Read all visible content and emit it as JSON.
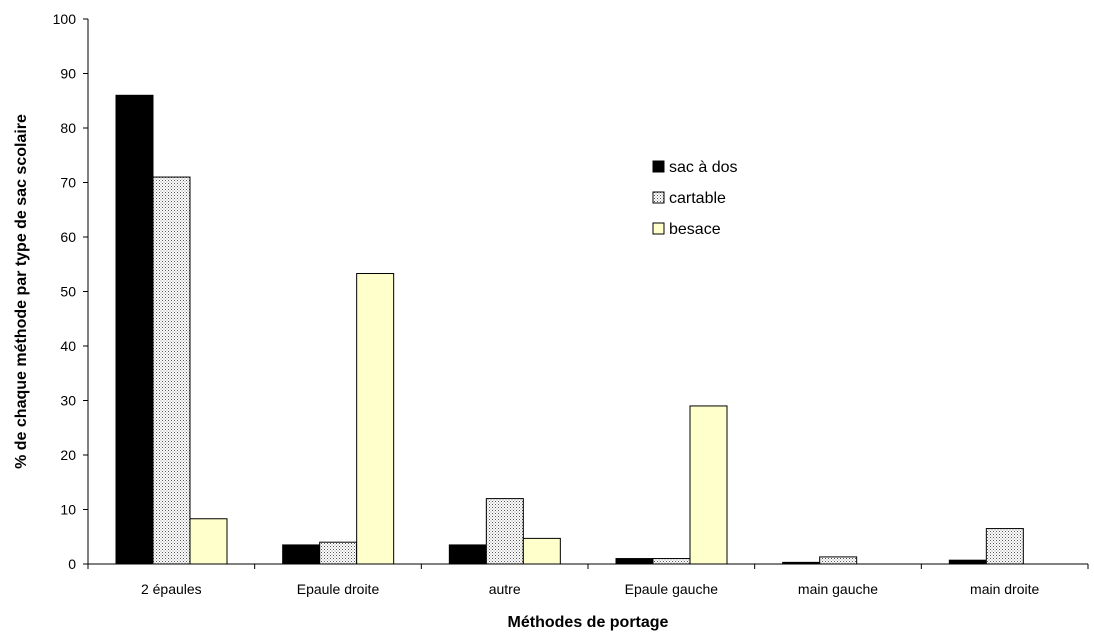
{
  "chart_data": {
    "type": "bar",
    "xlabel": "Méthodes de portage",
    "ylabel": "% de chaque méthode par type de sac scolaire",
    "ylim": [
      0,
      100
    ],
    "yticks": [
      0,
      10,
      20,
      30,
      40,
      50,
      60,
      70,
      80,
      90,
      100
    ],
    "categories": [
      "2 épaules",
      "Epaule droite",
      "autre",
      "Epaule gauche",
      "main gauche",
      "main droite"
    ],
    "series": [
      {
        "name": "sac à dos",
        "values": [
          86,
          3.5,
          3.5,
          1,
          0.3,
          0.7
        ],
        "color": "#000000",
        "pattern": "solid"
      },
      {
        "name": "cartable",
        "values": [
          71,
          4,
          12,
          1,
          1.3,
          6.5
        ],
        "color": "#d9d9d9",
        "pattern": "dots"
      },
      {
        "name": "besace",
        "values": [
          8.3,
          53.3,
          4.7,
          29,
          0,
          0
        ],
        "color": "#ffffcc",
        "pattern": "solid"
      }
    ],
    "legend_position": "upper-right",
    "grid": false
  }
}
